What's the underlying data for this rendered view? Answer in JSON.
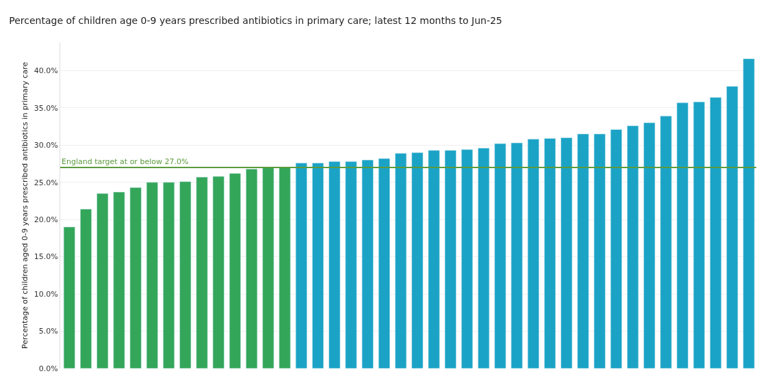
{
  "chart_data": {
    "type": "bar",
    "title": "Percentage of children age 0-9 years prescribed antibiotics in primary care; latest 12 months to Jun-25",
    "ylabel": "Percentage of children aged 0-9 years prescribed antibiotics in primary care",
    "categories": [
      null,
      null,
      null,
      null,
      null,
      null,
      null,
      null,
      null,
      null,
      null,
      null,
      null,
      null,
      null,
      null,
      null,
      null,
      null,
      null,
      null,
      null,
      null,
      null,
      null,
      null,
      null,
      null,
      null,
      null,
      null,
      null,
      null,
      null,
      null,
      null,
      null,
      null,
      null,
      null,
      null,
      null
    ],
    "values": [
      19.0,
      21.4,
      23.5,
      23.7,
      24.3,
      25.0,
      25.0,
      25.1,
      25.7,
      25.8,
      26.2,
      26.8,
      27.0,
      27.0,
      27.6,
      27.6,
      27.8,
      27.8,
      28.0,
      28.2,
      28.9,
      29.0,
      29.3,
      29.3,
      29.4,
      29.6,
      30.2,
      30.3,
      30.8,
      30.9,
      31.0,
      31.5,
      31.5,
      32.1,
      32.6,
      33.0,
      33.9,
      35.7,
      35.8,
      36.4,
      37.9,
      41.6
    ],
    "colors": [
      "#34a65a",
      "#34a65a",
      "#34a65a",
      "#34a65a",
      "#34a65a",
      "#34a65a",
      "#34a65a",
      "#34a65a",
      "#34a65a",
      "#34a65a",
      "#34a65a",
      "#34a65a",
      "#34a65a",
      "#34a65a",
      "#1ba3c6",
      "#1ba3c6",
      "#1ba3c6",
      "#1ba3c6",
      "#1ba3c6",
      "#1ba3c6",
      "#1ba3c6",
      "#1ba3c6",
      "#1ba3c6",
      "#1ba3c6",
      "#1ba3c6",
      "#1ba3c6",
      "#1ba3c6",
      "#1ba3c6",
      "#1ba3c6",
      "#1ba3c6",
      "#1ba3c6",
      "#1ba3c6",
      "#1ba3c6",
      "#1ba3c6",
      "#1ba3c6",
      "#1ba3c6",
      "#1ba3c6",
      "#1ba3c6",
      "#1ba3c6",
      "#1ba3c6",
      "#1ba3c6",
      "#1ba3c6"
    ],
    "ylim": [
      0,
      43.8
    ],
    "yticks": [
      {
        "value": 0,
        "label": "0.0%"
      },
      {
        "value": 5,
        "label": "5.0%"
      },
      {
        "value": 10,
        "label": "10.0%"
      },
      {
        "value": 15,
        "label": "15.0%"
      },
      {
        "value": 20,
        "label": "20.0%"
      },
      {
        "value": 25,
        "label": "25.0%"
      },
      {
        "value": 30,
        "label": "30.0%"
      },
      {
        "value": 35,
        "label": "35.0%"
      },
      {
        "value": 40,
        "label": "40.0%"
      }
    ],
    "grid": "y",
    "ref_lines": [
      {
        "axis": "y",
        "value": 27.0,
        "label": "England target at or below 27.0%",
        "color": "#5b9a3c"
      }
    ]
  }
}
